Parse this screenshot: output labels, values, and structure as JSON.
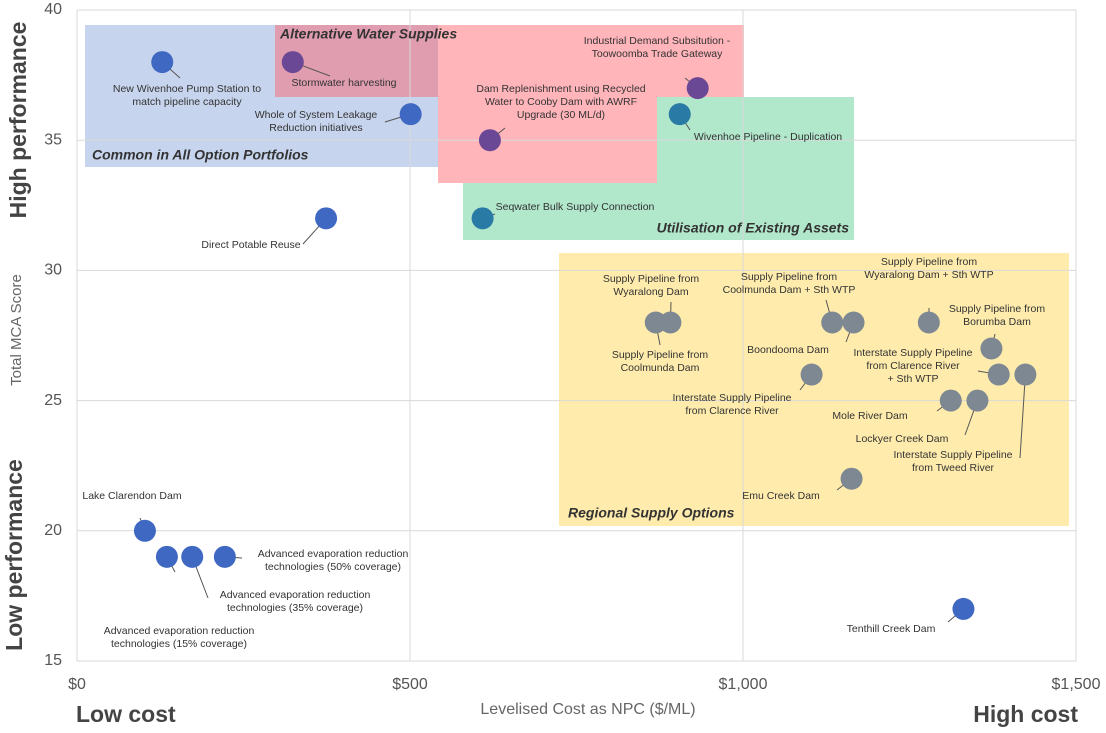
{
  "chart_data": {
    "type": "scatter",
    "xlabel": "Levelised Cost as NPC ($/ML)",
    "ylabel": "Total MCA Score",
    "xlim": [
      0,
      1500
    ],
    "ylim": [
      15,
      40
    ],
    "xticks": [
      {
        "value": 0,
        "label": "$0"
      },
      {
        "value": 500,
        "label": "$500"
      },
      {
        "value": 1000,
        "label": "$1,000"
      },
      {
        "value": 1500,
        "label": "$1,500"
      }
    ],
    "yticks": [
      15,
      20,
      25,
      30,
      35,
      40
    ],
    "grid": true,
    "annotations": {
      "high_performance": "High performance",
      "low_performance": "Low performance",
      "low_cost": "Low cost",
      "high_cost": "High cost"
    },
    "regions": [
      {
        "label": "Common in All Option Portfolios",
        "color": "#1f2f6e"
      },
      {
        "label": "Alternative Water Supplies",
        "color": "#e8151f"
      },
      {
        "label": "Utilisation of Existing Assets",
        "color": "#1e6b3c"
      },
      {
        "label": "Regional Supply Options",
        "color": "#8a6d10"
      }
    ],
    "points": [
      {
        "label": [
          "New Wivenhoe Pump Station to",
          "match pipeline capacity"
        ],
        "x": 128,
        "y": 38,
        "color": "#3f68c2"
      },
      {
        "label": [
          "Stormwater harvesting"
        ],
        "x": 324,
        "y": 38,
        "color": "#6b4896"
      },
      {
        "label": [
          "Whole of System Leakage",
          "Reduction initiatives"
        ],
        "x": 501,
        "y": 36,
        "color": "#3f68c2"
      },
      {
        "label": [
          "Industrial Demand Subsitution -",
          "Toowoomba Trade Gateway"
        ],
        "x": 932,
        "y": 37,
        "color": "#6b4896"
      },
      {
        "label": [
          "Dam Replenishment using Recycled",
          "Water to Cooby Dam with AWRF",
          "Upgrade (30 ML/d)"
        ],
        "x": 620,
        "y": 35,
        "color": "#6b4896"
      },
      {
        "label": [
          "Wivenhoe Pipeline - Duplication"
        ],
        "x": 905,
        "y": 36,
        "color": "#2a7aa6"
      },
      {
        "label": [
          "Seqwater Bulk Supply Connection"
        ],
        "x": 609,
        "y": 32,
        "color": "#2a7aa6"
      },
      {
        "label": [
          "Direct Potable Reuse"
        ],
        "x": 374,
        "y": 32,
        "color": "#3f68c2"
      },
      {
        "label": [
          "Supply Pipeline from",
          "Wyaralong Dam"
        ],
        "x": 891,
        "y": 28,
        "color": "#7d8893"
      },
      {
        "label": [
          "Supply Pipeline from",
          "Coolmunda Dam"
        ],
        "x": 869,
        "y": 28,
        "color": "#7d8893"
      },
      {
        "label": [
          "Supply Pipeline from",
          "Coolmunda Dam + Sth WTP"
        ],
        "x": 1134,
        "y": 28,
        "color": "#7d8893"
      },
      {
        "label": [
          "Boondooma Dam"
        ],
        "x": 1166,
        "y": 28,
        "color": "#7d8893"
      },
      {
        "label": [
          "Supply Pipeline from",
          "Wyaralong Dam + Sth WTP"
        ],
        "x": 1279,
        "y": 28,
        "color": "#7d8893"
      },
      {
        "label": [
          "Supply Pipeline from",
          "Borumba Dam"
        ],
        "x": 1373,
        "y": 27,
        "color": "#7d8893"
      },
      {
        "label": [
          "Interstate Supply Pipeline",
          "from Clarence River",
          "+ Sth WTP"
        ],
        "x": 1384,
        "y": 26,
        "color": "#7d8893"
      },
      {
        "label": [
          "Interstate Supply Pipeline",
          "from Tweed River"
        ],
        "x": 1424,
        "y": 26,
        "color": "#7d8893"
      },
      {
        "label": [
          "Interstate Supply Pipeline",
          "from Clarence River"
        ],
        "x": 1103,
        "y": 26,
        "color": "#7d8893"
      },
      {
        "label": [
          "Mole River Dam"
        ],
        "x": 1312,
        "y": 25,
        "color": "#7d8893"
      },
      {
        "label": [
          "Lockyer Creek Dam"
        ],
        "x": 1352,
        "y": 25,
        "color": "#7d8893"
      },
      {
        "label": [
          "Emu Creek Dam"
        ],
        "x": 1163,
        "y": 22,
        "color": "#7d8893"
      },
      {
        "label": [
          "Tenthill Creek Dam"
        ],
        "x": 1331,
        "y": 17,
        "color": "#3f68c2"
      },
      {
        "label": [
          "Lake Clarendon Dam"
        ],
        "x": 102,
        "y": 20,
        "color": "#3f68c2"
      },
      {
        "label": [
          "Advanced evaporation reduction",
          "technologies (15% coverage)"
        ],
        "x": 135,
        "y": 19,
        "color": "#3f68c2"
      },
      {
        "label": [
          "Advanced evaporation reduction",
          "technologies (35% coverage)"
        ],
        "x": 173,
        "y": 19,
        "color": "#3f68c2"
      },
      {
        "label": [
          "Advanced evaporation reduction",
          "technologies (50% coverage)"
        ],
        "x": 222,
        "y": 19,
        "color": "#3f68c2"
      }
    ]
  }
}
